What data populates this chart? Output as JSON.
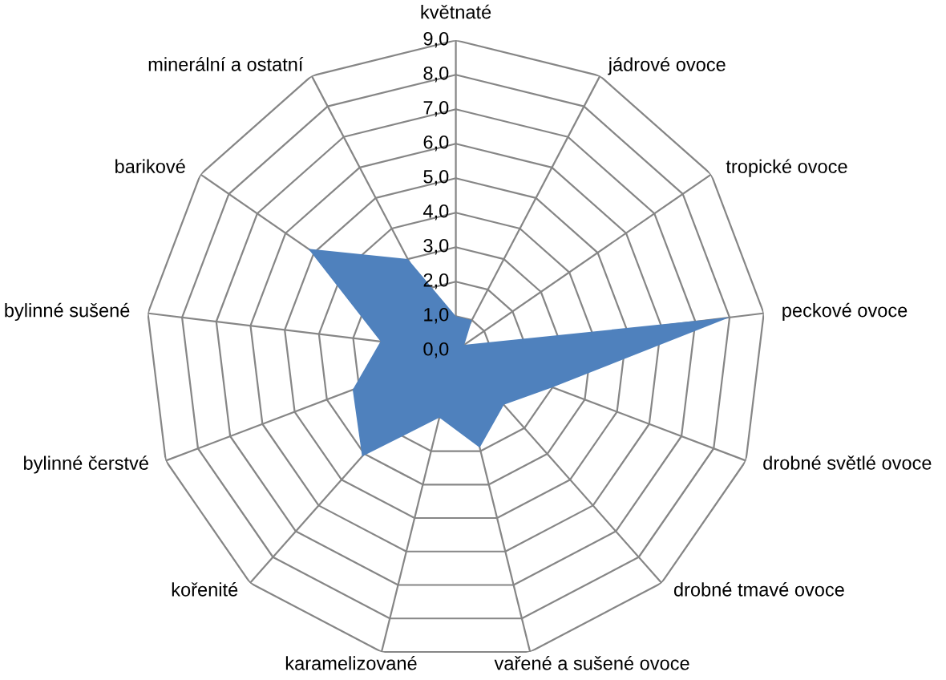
{
  "chart_data": {
    "type": "radar",
    "categories": [
      "květnaté",
      "jádrové ovoce",
      "tropické ovoce",
      "peckové ovoce",
      "drobné světlé ovoce",
      "drobné tmavé ovoce",
      "vařené a sušené ovoce",
      "karamelizované",
      "kořenité",
      "bylinné čerstvé",
      "bylinné sušené",
      "barikové",
      "minerální a ostatní"
    ],
    "values": [
      1.0,
      1.0,
      0.3,
      8.0,
      3.0,
      2.1,
      2.9,
      2.0,
      4.1,
      3.2,
      2.2,
      5.2,
      3.0
    ],
    "color": "#4f81bd",
    "ylim": [
      0,
      9
    ],
    "yticks": [
      {
        "value": 0,
        "label": "0,0"
      },
      {
        "value": 1,
        "label": "1,0"
      },
      {
        "value": 2,
        "label": "2,0"
      },
      {
        "value": 3,
        "label": "3,0"
      },
      {
        "value": 4,
        "label": "4,0"
      },
      {
        "value": 5,
        "label": "5,0"
      },
      {
        "value": 6,
        "label": "6,0"
      },
      {
        "value": 7,
        "label": "7,0"
      },
      {
        "value": 8,
        "label": "8,0"
      },
      {
        "value": 9,
        "label": "9,0"
      }
    ],
    "grid": true
  }
}
